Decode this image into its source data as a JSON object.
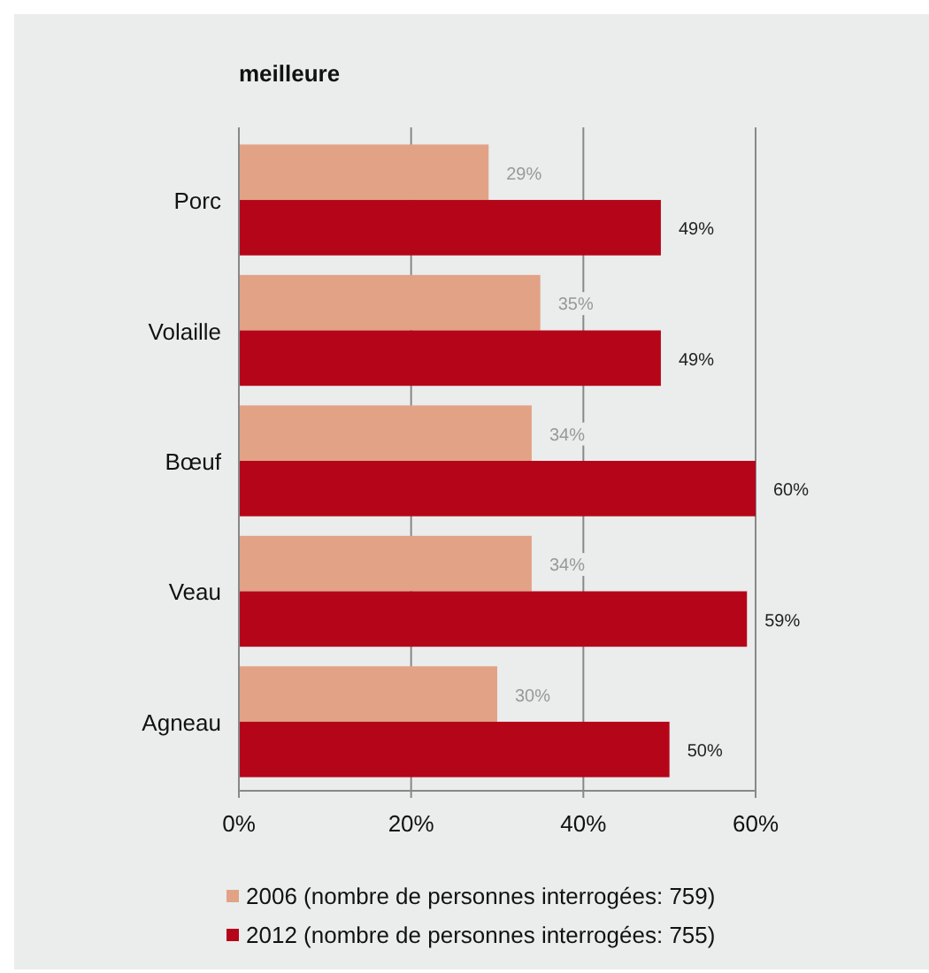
{
  "chart_data": {
    "type": "bar",
    "orientation": "horizontal",
    "title": "meilleure",
    "categories": [
      "Porc",
      "Volaille",
      "Bœuf",
      "Veau",
      "Agneau"
    ],
    "series": [
      {
        "name": "2006 (nombre de personnes interrogées: 759)",
        "color": "#e2a286",
        "values": [
          29,
          35,
          34,
          34,
          30
        ],
        "value_labels": [
          "29%",
          "35%",
          "34%",
          "34%",
          "30%"
        ]
      },
      {
        "name": "2012 (nombre de personnes interrogées: 755)",
        "color": "#b50619",
        "values": [
          49,
          49,
          60,
          59,
          50
        ],
        "value_labels": [
          "49%",
          "49%",
          "60%",
          "59%",
          "50%"
        ]
      }
    ],
    "xlim": [
      0,
      60
    ],
    "xticks": [
      {
        "value": 0,
        "label": "0%"
      },
      {
        "value": 20,
        "label": "20%"
      },
      {
        "value": 40,
        "label": "40%"
      },
      {
        "value": 60,
        "label": "60%"
      }
    ],
    "grid": "x",
    "legend": "bottom"
  }
}
